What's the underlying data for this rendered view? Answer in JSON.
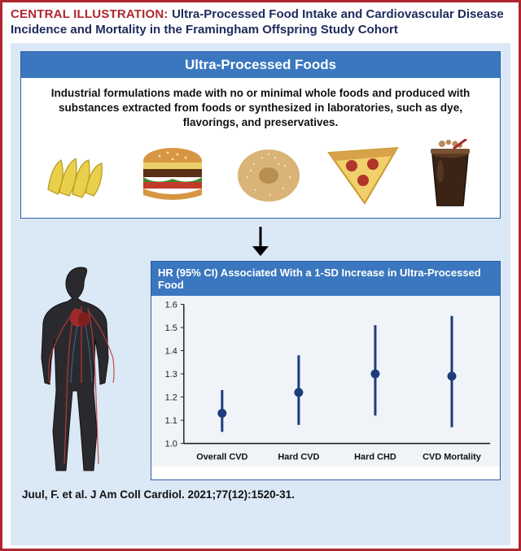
{
  "header": {
    "label": "CENTRAL ILLUSTRATION:",
    "title": "Ultra-Processed Food Intake and Cardiovascular Disease Incidence and Mortality in the Framingham Offspring Study Cohort"
  },
  "foods_card": {
    "title": "Ultra-Processed Foods",
    "definition": "Industrial formulations made with no or minimal whole foods and produced with substances extracted from foods or synthesized in laboratories, such as dye, flavorings, and preservatives.",
    "items": [
      "chips",
      "burger",
      "bagel",
      "pizza-slice",
      "soda"
    ]
  },
  "chart": {
    "title": "HR (95% CI) Associated With a 1-SD Increase in Ultra-Processed Food",
    "ylim": [
      1.0,
      1.6
    ],
    "yticks": [
      1.0,
      1.1,
      1.2,
      1.3,
      1.4,
      1.5,
      1.6
    ],
    "categories": [
      "Overall CVD",
      "Hard CVD",
      "Hard CHD",
      "CVD Mortality"
    ],
    "points": [
      {
        "hr": 1.13,
        "lo": 1.05,
        "hi": 1.23
      },
      {
        "hr": 1.22,
        "lo": 1.08,
        "hi": 1.38
      },
      {
        "hr": 1.3,
        "lo": 1.12,
        "hi": 1.51
      },
      {
        "hr": 1.29,
        "lo": 1.07,
        "hi": 1.55
      }
    ],
    "colors": {
      "point": "#1d3c7a",
      "line": "#1d3c7a",
      "refline": "#222222",
      "axis": "#222222",
      "bg": "#f0f3f7",
      "ticklabel": "#222222"
    },
    "fontsize_tick": 11,
    "fontsize_cat": 11,
    "marker_radius": 5.5,
    "line_width": 3
  },
  "citation": "Juul, F. et al. J Am Coll Cardiol. 2021;77(12):1520-31.",
  "palette": {
    "red": "#b0272f",
    "darkblue": "#1d2a5b",
    "cardblue": "#3b77bf",
    "lightblue": "#dbe8f6"
  }
}
